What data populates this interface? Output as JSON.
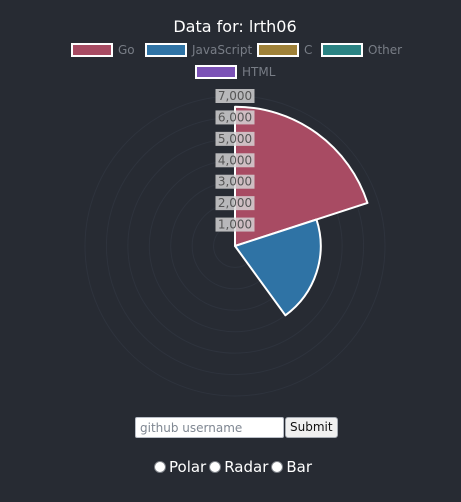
{
  "chart_data": {
    "type": "polarArea",
    "title": "Data for: lrth06",
    "categories": [
      "Go",
      "JavaScript",
      "C",
      "Other",
      "HTML"
    ],
    "values": [
      6500,
      4000,
      0,
      0,
      0
    ],
    "radial_ticks": [
      "1,000",
      "2,000",
      "3,000",
      "4,000",
      "5,000",
      "6,000",
      "7,000"
    ],
    "rlim": [
      0,
      7000
    ],
    "grid": true,
    "legend_position": "top",
    "colors": {
      "background": "#272b33",
      "title": "#ffffff",
      "legend_text": "#787d86",
      "grid": "#2e333d",
      "slice_border": "#ffffff",
      "tick_background": "#d8d8d8",
      "tick_text": "#555555"
    },
    "series_colors": [
      "#a84b63",
      "#2f73a5",
      "#9f8138",
      "#2a8383",
      "#7b52b6"
    ]
  },
  "form": {
    "placeholder": "github username",
    "submit_label": "Submit"
  },
  "chart_type_options": [
    "Polar",
    "Radar",
    "Bar"
  ]
}
